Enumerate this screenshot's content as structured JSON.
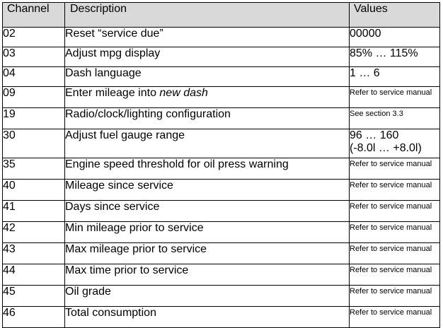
{
  "table": {
    "headers": {
      "channel": "Channel",
      "description": "Description",
      "values": "Values"
    },
    "rows": [
      {
        "channel": "02",
        "description": "Reset “service due”",
        "value": "00000"
      },
      {
        "channel": "03",
        "description": "Adjust mpg display",
        "value": "85% … 115%"
      },
      {
        "channel": "04",
        "description": "Dash language",
        "value": "1 … 6"
      },
      {
        "channel": "09",
        "description": "Enter mileage into ",
        "description_italic": "new dash",
        "value": "Refer to service manual"
      },
      {
        "channel": "19",
        "description": "Radio/clock/lighting configuration",
        "value": "See section 3.3"
      },
      {
        "channel": "30",
        "description": "Adjust fuel gauge range",
        "value": "96 … 160",
        "value_line2": "(-8.0l … +8.0l)"
      },
      {
        "channel": "35",
        "description": "Engine speed threshold for oil press warning",
        "value": "Refer to service manual"
      },
      {
        "channel": "40",
        "description": "Mileage since service",
        "value": "Refer to service manual"
      },
      {
        "channel": "41",
        "description": "Days since service",
        "value": "Refer to service manual"
      },
      {
        "channel": "42",
        "description": "Min mileage prior to service",
        "value": "Refer to service manual"
      },
      {
        "channel": "43",
        "description": "Max mileage prior to service",
        "value": "Refer to service manual"
      },
      {
        "channel": "44",
        "description": "Max time prior to service",
        "value": "Refer to service manual"
      },
      {
        "channel": "45",
        "description": "Oil grade",
        "value": "Refer to service manual"
      },
      {
        "channel": "46",
        "description": "Total consumption",
        "value": "Refer to service manual"
      }
    ]
  }
}
